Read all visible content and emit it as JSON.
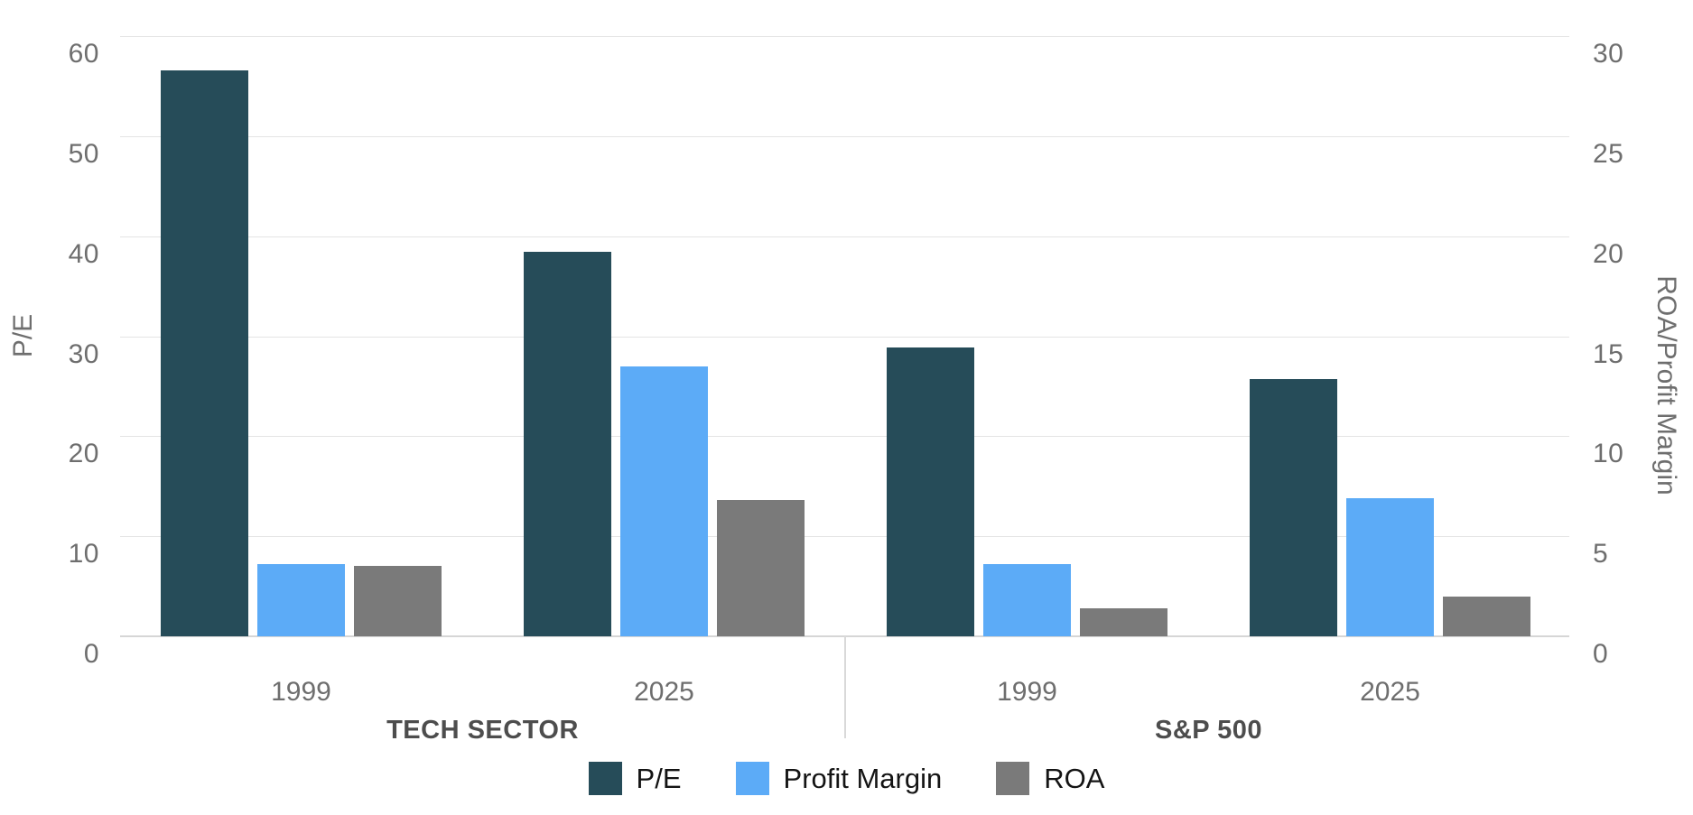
{
  "chart_data": {
    "type": "bar",
    "title": "",
    "categories": [
      "1999",
      "2025",
      "1999",
      "2025"
    ],
    "sections": [
      {
        "label": "TECH SECTOR",
        "category_indexes": [
          0,
          1
        ]
      },
      {
        "label": "S&P 500",
        "category_indexes": [
          2,
          3
        ]
      }
    ],
    "series": [
      {
        "name": "P/E",
        "axis": "left",
        "color": "#264c59",
        "values": [
          56.6,
          38.4,
          28.9,
          25.7
        ]
      },
      {
        "name": "Profit Margin",
        "axis": "right",
        "color": "#5cabf7",
        "values": [
          3.6,
          13.5,
          3.6,
          6.9
        ]
      },
      {
        "name": "ROA",
        "axis": "right",
        "color": "#7a7a7a",
        "values": [
          3.5,
          6.8,
          1.4,
          2.0
        ]
      }
    ],
    "left_axis": {
      "title": "P/E",
      "min": 0,
      "max": 60,
      "ticks": [
        0,
        10,
        20,
        30,
        40,
        50,
        60
      ]
    },
    "right_axis": {
      "title": "ROA/Profit Margin",
      "min": 0,
      "max": 30,
      "ticks": [
        0,
        5,
        10,
        15,
        20,
        25,
        30
      ]
    },
    "grid": true,
    "legend": {
      "position": "bottom",
      "items": [
        "P/E",
        "Profit Margin",
        "ROA"
      ]
    }
  },
  "colors": {
    "background": "#ffffff",
    "gridline": "#e4e4e4",
    "baseline": "#d6d6d6",
    "divider": "#d9d9d9",
    "tick_text": "#6e6e6e",
    "category_text": "#6e6e6e",
    "section_text": "#4d4d4d",
    "legend_text": "#141414"
  }
}
